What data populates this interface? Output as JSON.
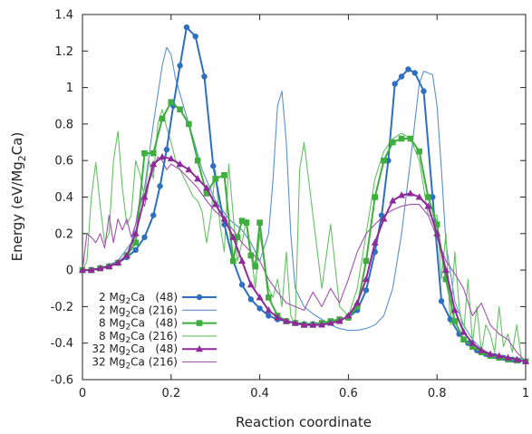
{
  "chart_data": {
    "type": "line",
    "xlabel": "Reaction coordinate",
    "ylabel_parts": [
      "Energy (eV/Mg",
      "2",
      "Ca)"
    ],
    "xlim": [
      0,
      1
    ],
    "ylim": [
      -0.6,
      1.4
    ],
    "xticks": [
      "0",
      "0.2",
      "0.4",
      "0.6",
      "0.8",
      "1"
    ],
    "yticks": [
      "-0.6",
      "-0.4",
      "-0.2",
      "0",
      "0.2",
      "0.4",
      "0.6",
      "0.8",
      "1",
      "1.2",
      "1.4"
    ],
    "grid": false,
    "legend_position": "bottom-left",
    "series": [
      {
        "name_parts": [
          "2 Mg",
          "2",
          "Ca   (48)"
        ],
        "color": "#2f6fbf",
        "marker": "circle",
        "line": "thick",
        "x": [
          0,
          0.02,
          0.04,
          0.06,
          0.08,
          0.1,
          0.12,
          0.14,
          0.16,
          0.175,
          0.19,
          0.205,
          0.22,
          0.235,
          0.255,
          0.275,
          0.295,
          0.32,
          0.34,
          0.36,
          0.38,
          0.4,
          0.42,
          0.44,
          0.46,
          0.48,
          0.5,
          0.52,
          0.54,
          0.56,
          0.58,
          0.6,
          0.62,
          0.64,
          0.66,
          0.675,
          0.69,
          0.705,
          0.72,
          0.735,
          0.75,
          0.77,
          0.79,
          0.81,
          0.83,
          0.85,
          0.87,
          0.89,
          0.91,
          0.93,
          0.95,
          0.97,
          0.985,
          1.0
        ],
        "y": [
          0,
          0,
          0.01,
          0.02,
          0.04,
          0.07,
          0.11,
          0.18,
          0.3,
          0.46,
          0.66,
          0.9,
          1.12,
          1.33,
          1.28,
          1.06,
          0.57,
          0.25,
          0.05,
          -0.08,
          -0.16,
          -0.21,
          -0.25,
          -0.27,
          -0.28,
          -0.29,
          -0.295,
          -0.295,
          -0.29,
          -0.28,
          -0.27,
          -0.26,
          -0.22,
          -0.11,
          0.1,
          0.3,
          0.6,
          1.02,
          1.06,
          1.1,
          1.08,
          0.98,
          0.4,
          -0.17,
          -0.27,
          -0.35,
          -0.4,
          -0.44,
          -0.46,
          -0.47,
          -0.48,
          -0.49,
          -0.495,
          -0.5
        ]
      },
      {
        "name_parts": [
          "2 Mg",
          "2",
          "Ca (216)"
        ],
        "color": "#5b8fd0",
        "marker": "none",
        "line": "thin",
        "x": [
          0,
          0.04,
          0.08,
          0.11,
          0.14,
          0.16,
          0.18,
          0.19,
          0.2,
          0.21,
          0.23,
          0.25,
          0.27,
          0.3,
          0.33,
          0.36,
          0.38,
          0.4,
          0.42,
          0.43,
          0.44,
          0.45,
          0.46,
          0.47,
          0.48,
          0.5,
          0.52,
          0.54,
          0.56,
          0.58,
          0.6,
          0.62,
          0.64,
          0.66,
          0.68,
          0.7,
          0.72,
          0.74,
          0.76,
          0.77,
          0.78,
          0.79,
          0.8,
          0.81,
          0.82,
          0.84,
          0.86,
          0.88,
          0.9,
          0.92,
          0.95,
          0.98,
          1.0
        ],
        "y": [
          0,
          0.01,
          0.05,
          0.15,
          0.45,
          0.8,
          1.12,
          1.22,
          1.18,
          1.05,
          0.88,
          0.72,
          0.55,
          0.38,
          0.28,
          0.22,
          0.15,
          0.05,
          0.2,
          0.5,
          0.9,
          0.98,
          0.7,
          0.2,
          -0.1,
          -0.2,
          -0.24,
          -0.27,
          -0.3,
          -0.32,
          -0.33,
          -0.33,
          -0.32,
          -0.3,
          -0.25,
          -0.1,
          0.2,
          0.6,
          1.02,
          1.09,
          1.08,
          1.07,
          0.9,
          0.55,
          0.15,
          -0.17,
          -0.3,
          -0.38,
          -0.43,
          -0.46,
          -0.48,
          -0.49,
          -0.5
        ]
      },
      {
        "name_parts": [
          "8 Mg",
          "2",
          "Ca   (48)"
        ],
        "color": "#3fae3f",
        "marker": "square",
        "line": "thick",
        "x": [
          0,
          0.02,
          0.04,
          0.06,
          0.08,
          0.1,
          0.12,
          0.14,
          0.16,
          0.18,
          0.2,
          0.22,
          0.24,
          0.26,
          0.28,
          0.3,
          0.32,
          0.34,
          0.35,
          0.36,
          0.37,
          0.38,
          0.39,
          0.4,
          0.42,
          0.44,
          0.46,
          0.48,
          0.5,
          0.52,
          0.54,
          0.56,
          0.58,
          0.6,
          0.62,
          0.64,
          0.66,
          0.68,
          0.7,
          0.72,
          0.74,
          0.76,
          0.78,
          0.8,
          0.82,
          0.84,
          0.86,
          0.88,
          0.9,
          0.92,
          0.94,
          0.96,
          0.98,
          1.0
        ],
        "y": [
          0,
          0,
          0.01,
          0.02,
          0.04,
          0.08,
          0.15,
          0.64,
          0.64,
          0.83,
          0.92,
          0.88,
          0.8,
          0.6,
          0.42,
          0.5,
          0.52,
          0.05,
          0.18,
          0.27,
          0.26,
          0.08,
          0.02,
          0.26,
          -0.15,
          -0.25,
          -0.28,
          -0.29,
          -0.3,
          -0.3,
          -0.29,
          -0.28,
          -0.27,
          -0.26,
          -0.2,
          0.05,
          0.4,
          0.6,
          0.7,
          0.72,
          0.72,
          0.65,
          0.4,
          0.25,
          -0.05,
          -0.28,
          -0.38,
          -0.42,
          -0.45,
          -0.47,
          -0.48,
          -0.49,
          -0.495,
          -0.5
        ]
      },
      {
        "name_parts": [
          "8 Mg",
          "2",
          "Ca (216)"
        ],
        "color": "#66c266",
        "marker": "none",
        "line": "thin",
        "x": [
          0,
          0.01,
          0.02,
          0.03,
          0.04,
          0.05,
          0.06,
          0.07,
          0.08,
          0.09,
          0.1,
          0.11,
          0.12,
          0.13,
          0.14,
          0.15,
          0.16,
          0.17,
          0.18,
          0.19,
          0.2,
          0.21,
          0.22,
          0.23,
          0.24,
          0.25,
          0.26,
          0.27,
          0.28,
          0.29,
          0.3,
          0.31,
          0.32,
          0.33,
          0.34,
          0.35,
          0.36,
          0.37,
          0.38,
          0.39,
          0.4,
          0.41,
          0.42,
          0.43,
          0.44,
          0.45,
          0.46,
          0.47,
          0.48,
          0.49,
          0.5,
          0.52,
          0.54,
          0.56,
          0.58,
          0.6,
          0.62,
          0.64,
          0.66,
          0.68,
          0.7,
          0.72,
          0.74,
          0.76,
          0.78,
          0.8,
          0.81,
          0.82,
          0.83,
          0.84,
          0.85,
          0.86,
          0.87,
          0.88,
          0.89,
          0.9,
          0.91,
          0.92,
          0.93,
          0.94,
          0.95,
          0.96,
          0.97,
          0.98,
          0.99,
          1.0
        ],
        "y": [
          0,
          0.05,
          0.4,
          0.59,
          0.35,
          0.15,
          0.2,
          0.6,
          0.76,
          0.45,
          0.25,
          0.3,
          0.6,
          0.52,
          0.4,
          0.6,
          0.5,
          0.8,
          0.88,
          0.78,
          0.7,
          0.6,
          0.55,
          0.5,
          0.45,
          0.4,
          0.38,
          0.32,
          0.15,
          0.3,
          0.55,
          0.25,
          0.1,
          0.58,
          0.3,
          0.05,
          0.15,
          0.28,
          0.1,
          -0.1,
          0.2,
          0.05,
          -0.1,
          -0.15,
          -0.05,
          -0.2,
          0.1,
          -0.25,
          -0.3,
          0.55,
          0.7,
          0.3,
          -0.1,
          0.25,
          -0.2,
          -0.25,
          -0.1,
          0.2,
          0.5,
          0.65,
          0.72,
          0.75,
          0.72,
          0.6,
          0.3,
          0.3,
          -0.05,
          0.2,
          -0.3,
          0.1,
          -0.2,
          -0.35,
          -0.05,
          -0.4,
          -0.2,
          -0.45,
          -0.3,
          -0.35,
          -0.45,
          -0.2,
          -0.42,
          -0.35,
          -0.45,
          -0.3,
          -0.48,
          -0.5
        ]
      },
      {
        "name_parts": [
          "32 Mg",
          "2",
          "Ca   (48)"
        ],
        "color": "#8e2a9a",
        "marker": "triangle",
        "line": "thick",
        "x": [
          0,
          0.02,
          0.04,
          0.06,
          0.08,
          0.1,
          0.12,
          0.14,
          0.16,
          0.18,
          0.2,
          0.22,
          0.24,
          0.26,
          0.28,
          0.3,
          0.32,
          0.34,
          0.36,
          0.38,
          0.4,
          0.42,
          0.44,
          0.46,
          0.48,
          0.5,
          0.52,
          0.54,
          0.56,
          0.58,
          0.6,
          0.62,
          0.64,
          0.66,
          0.68,
          0.7,
          0.72,
          0.74,
          0.76,
          0.78,
          0.8,
          0.82,
          0.84,
          0.86,
          0.88,
          0.9,
          0.92,
          0.94,
          0.96,
          0.98,
          1.0
        ],
        "y": [
          0,
          0,
          0.01,
          0.02,
          0.04,
          0.08,
          0.2,
          0.4,
          0.58,
          0.62,
          0.61,
          0.58,
          0.55,
          0.5,
          0.45,
          0.36,
          0.28,
          0.18,
          0.05,
          -0.08,
          -0.15,
          -0.22,
          -0.26,
          -0.28,
          -0.29,
          -0.3,
          -0.3,
          -0.3,
          -0.29,
          -0.28,
          -0.25,
          -0.18,
          -0.05,
          0.15,
          0.28,
          0.38,
          0.41,
          0.42,
          0.4,
          0.35,
          0.2,
          0.0,
          -0.22,
          -0.34,
          -0.4,
          -0.44,
          -0.46,
          -0.47,
          -0.48,
          -0.49,
          -0.5
        ]
      },
      {
        "name_parts": [
          "32 Mg",
          "2",
          "Ca (216)"
        ],
        "color": "#a24fb0",
        "marker": "none",
        "line": "thin",
        "x": [
          0,
          0.01,
          0.02,
          0.03,
          0.04,
          0.05,
          0.06,
          0.07,
          0.08,
          0.09,
          0.1,
          0.11,
          0.12,
          0.13,
          0.14,
          0.15,
          0.16,
          0.17,
          0.18,
          0.19,
          0.2,
          0.22,
          0.24,
          0.26,
          0.28,
          0.3,
          0.32,
          0.34,
          0.36,
          0.38,
          0.4,
          0.42,
          0.44,
          0.46,
          0.48,
          0.5,
          0.52,
          0.54,
          0.56,
          0.58,
          0.6,
          0.62,
          0.64,
          0.66,
          0.68,
          0.7,
          0.72,
          0.74,
          0.76,
          0.78,
          0.8,
          0.82,
          0.84,
          0.86,
          0.88,
          0.9,
          0.92,
          0.94,
          0.96,
          0.98,
          1.0
        ],
        "y": [
          0,
          0.2,
          0.18,
          0.15,
          0.2,
          0.12,
          0.3,
          0.15,
          0.28,
          0.22,
          0.28,
          0.18,
          0.25,
          0.4,
          0.35,
          0.48,
          0.55,
          0.62,
          0.6,
          0.55,
          0.58,
          0.55,
          0.5,
          0.45,
          0.38,
          0.32,
          0.28,
          0.22,
          0.15,
          0.1,
          0.05,
          -0.05,
          -0.12,
          -0.18,
          -0.2,
          -0.22,
          -0.12,
          -0.2,
          -0.1,
          -0.18,
          -0.05,
          0.1,
          0.2,
          0.25,
          0.3,
          0.33,
          0.35,
          0.36,
          0.36,
          0.3,
          0.18,
          0.05,
          -0.02,
          -0.1,
          -0.25,
          -0.18,
          -0.3,
          -0.35,
          -0.38,
          -0.45,
          -0.5
        ]
      }
    ]
  }
}
